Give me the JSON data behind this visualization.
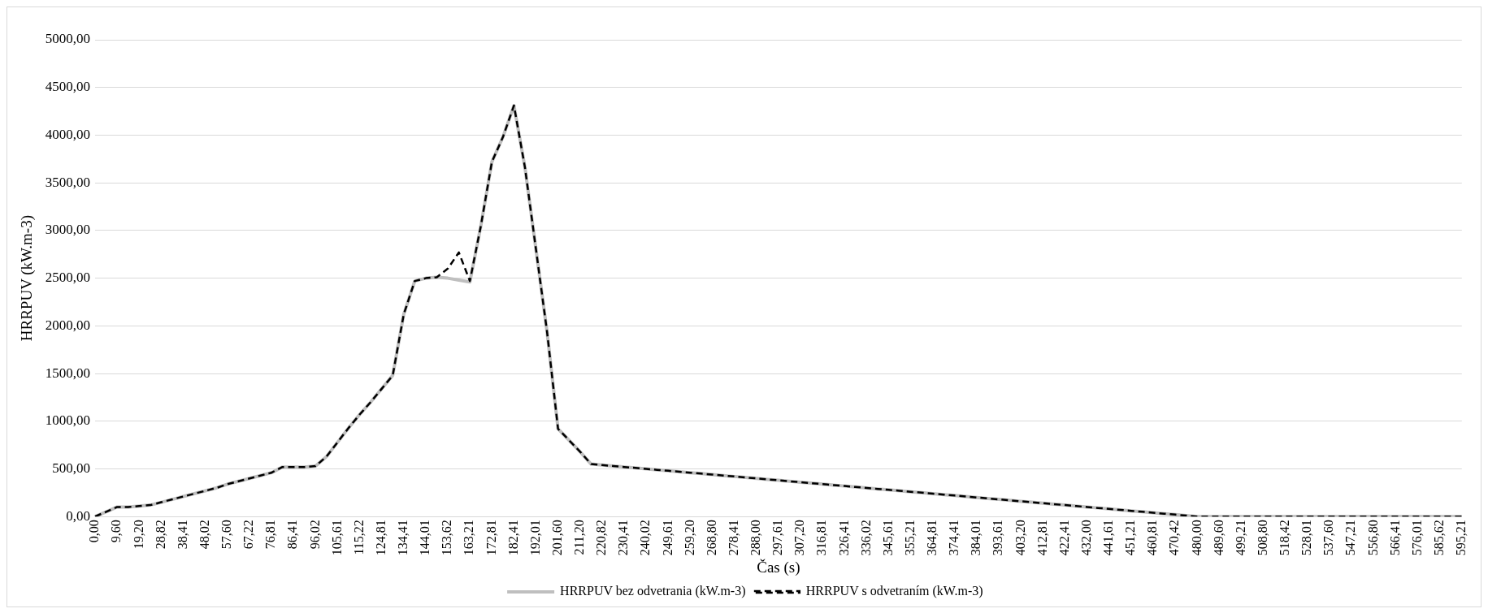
{
  "chart_data": {
    "type": "line",
    "xlabel": "Čas (s)",
    "ylabel": "HRRPUV (kW.m-3)",
    "categories": [
      "0,00",
      null,
      "9,60",
      null,
      "19,20",
      null,
      "28,82",
      null,
      "38,41",
      null,
      "48,02",
      null,
      "57,60",
      null,
      "67,22",
      null,
      "76,81",
      null,
      "86,41",
      null,
      "96,02",
      null,
      "105,61",
      null,
      "115,22",
      null,
      "124,81",
      null,
      "134,41",
      null,
      "144,01",
      null,
      "153,62",
      null,
      "163,21",
      null,
      "172,81",
      null,
      "182,41",
      null,
      "192,01",
      null,
      "201,60",
      null,
      "211,20",
      null,
      "220,82",
      null,
      "230,41",
      null,
      "240,02",
      null,
      "249,61",
      null,
      "259,20",
      null,
      "268,80",
      null,
      "278,41",
      null,
      "288,00",
      null,
      "297,61",
      null,
      "307,20",
      null,
      "316,81",
      null,
      "326,41",
      null,
      "336,02",
      null,
      "345,61",
      null,
      "355,21",
      null,
      "364,81",
      null,
      "374,41",
      null,
      "384,01",
      null,
      "393,61",
      null,
      "403,20",
      null,
      "412,81",
      null,
      "422,41",
      null,
      "432,00",
      null,
      "441,61",
      null,
      "451,21",
      null,
      "460,81",
      null,
      "470,42",
      null,
      "480,00",
      null,
      "489,60",
      null,
      "499,21",
      null,
      "508,80",
      null,
      "518,42",
      null,
      "528,01",
      null,
      "537,60",
      null,
      "547,21",
      null,
      "556,80",
      null,
      "566,41",
      null,
      "576,01",
      null,
      "585,62",
      null,
      "595,21"
    ],
    "series": [
      {
        "name": "HRRPUV bez odvetrania (kW.m-3)",
        "color": "#bfbfbf",
        "line_style": "solid",
        "values": [
          0,
          50,
          100,
          100,
          110,
          120,
          150,
          180,
          210,
          240,
          270,
          300,
          340,
          370,
          400,
          430,
          460,
          520,
          520,
          520,
          530,
          630,
          780,
          930,
          1070,
          1200,
          1340,
          1480,
          2120,
          2470,
          2500,
          2510,
          2500,
          2480,
          2460,
          3050,
          3720,
          3980,
          4310,
          3660,
          2800,
          1940,
          920,
          800,
          680,
          550,
          540,
          530,
          520,
          510,
          500,
          490,
          480,
          470,
          460,
          450,
          440,
          430,
          420,
          410,
          400,
          390,
          380,
          370,
          360,
          350,
          340,
          330,
          320,
          310,
          300,
          290,
          280,
          270,
          260,
          250,
          240,
          230,
          220,
          210,
          200,
          190,
          180,
          170,
          160,
          150,
          140,
          130,
          120,
          110,
          100,
          90,
          80,
          70,
          60,
          50,
          40,
          30,
          20,
          10,
          0,
          0,
          0,
          0,
          0,
          0,
          0,
          0,
          0,
          0,
          0,
          0,
          0,
          0,
          0,
          0,
          0,
          0,
          0,
          0,
          0,
          0,
          0,
          0,
          0
        ]
      },
      {
        "name": "HRRPUV s odvetraním (kW.m-3)",
        "color": "#000000",
        "line_style": "dashed",
        "values": [
          0,
          50,
          100,
          100,
          110,
          120,
          150,
          180,
          210,
          240,
          270,
          300,
          340,
          370,
          400,
          430,
          460,
          520,
          520,
          520,
          530,
          630,
          780,
          930,
          1070,
          1200,
          1340,
          1480,
          2120,
          2470,
          2500,
          2510,
          2600,
          2770,
          2470,
          3050,
          3720,
          3980,
          4310,
          3660,
          2800,
          1940,
          920,
          800,
          680,
          550,
          540,
          530,
          520,
          510,
          500,
          490,
          480,
          470,
          460,
          450,
          440,
          430,
          420,
          410,
          400,
          390,
          380,
          370,
          360,
          350,
          340,
          330,
          320,
          310,
          300,
          290,
          280,
          270,
          260,
          250,
          240,
          230,
          220,
          210,
          200,
          190,
          180,
          170,
          160,
          150,
          140,
          130,
          120,
          110,
          100,
          90,
          80,
          70,
          60,
          50,
          40,
          30,
          20,
          10,
          0,
          0,
          0,
          0,
          0,
          0,
          0,
          0,
          0,
          0,
          0,
          0,
          0,
          0,
          0,
          0,
          0,
          0,
          0,
          0,
          0,
          0,
          0,
          0,
          0
        ]
      }
    ],
    "ylim": [
      0,
      5000
    ],
    "yticks": [
      {
        "value": 0,
        "label": "0,00"
      },
      {
        "value": 500,
        "label": "500,00"
      },
      {
        "value": 1000,
        "label": "1000,00"
      },
      {
        "value": 1500,
        "label": "1500,00"
      },
      {
        "value": 2000,
        "label": "2000,00"
      },
      {
        "value": 2500,
        "label": "2500,00"
      },
      {
        "value": 3000,
        "label": "3000,00"
      },
      {
        "value": 3500,
        "label": "3500,00"
      },
      {
        "value": 4000,
        "label": "4000,00"
      },
      {
        "value": 4500,
        "label": "4500,00"
      },
      {
        "value": 5000,
        "label": "5000,00"
      }
    ],
    "grid": "y",
    "legend": "bottom",
    "marker": "none"
  }
}
